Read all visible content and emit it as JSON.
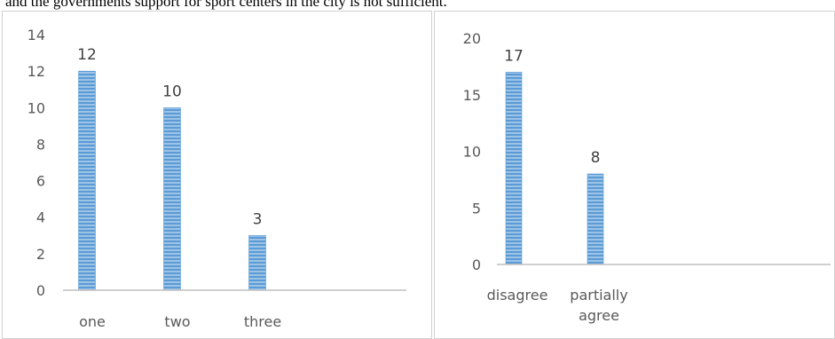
{
  "caption": "and the governments support for sport centers in the city is not sufficient.",
  "colors": {
    "bar": "#5b9bd5",
    "bar_stripe": "#9dc3e6",
    "axis": "#bfbfbf",
    "text": "#595959"
  },
  "chart_data": [
    {
      "type": "bar",
      "categories": [
        "one",
        "two",
        "three"
      ],
      "values": [
        12,
        10,
        3
      ],
      "ylim": [
        0,
        14
      ],
      "yticks": [
        0,
        2,
        4,
        6,
        8,
        10,
        12,
        14
      ],
      "data_labels": true,
      "grid": false,
      "legend": "none"
    },
    {
      "type": "bar",
      "categories": [
        [
          "disagree"
        ],
        [
          "partially",
          "agree"
        ]
      ],
      "values": [
        17,
        8
      ],
      "ylim": [
        0,
        20
      ],
      "yticks": [
        0,
        5,
        10,
        15,
        20
      ],
      "data_labels": true,
      "grid": false,
      "legend": "none"
    }
  ]
}
